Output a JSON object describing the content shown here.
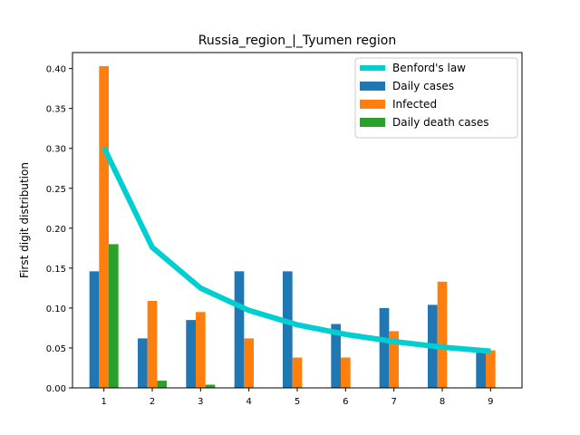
{
  "chart_data": {
    "type": "bar",
    "title": "Russia_region_|_Tyumen region",
    "xlabel": "",
    "ylabel": "First digit distribution",
    "categories": [
      "1",
      "2",
      "3",
      "4",
      "5",
      "6",
      "7",
      "8",
      "9"
    ],
    "ylim": [
      0,
      0.42
    ],
    "yticks": [
      "0.00",
      "0.05",
      "0.10",
      "0.15",
      "0.20",
      "0.25",
      "0.30",
      "0.35",
      "0.40"
    ],
    "grid": false,
    "legend_position": "top-right",
    "series": [
      {
        "name": "Daily cases",
        "kind": "bar",
        "color": "#1f77b4",
        "values": [
          0.146,
          0.062,
          0.085,
          0.146,
          0.146,
          0.08,
          0.1,
          0.104,
          0.045
        ]
      },
      {
        "name": "Infected",
        "kind": "bar",
        "color": "#ff7f0e",
        "values": [
          0.403,
          0.109,
          0.095,
          0.062,
          0.038,
          0.038,
          0.071,
          0.133,
          0.047
        ]
      },
      {
        "name": "Daily death cases",
        "kind": "bar",
        "color": "#2ca02c",
        "values": [
          0.18,
          0.009,
          0.004,
          0,
          0,
          0,
          0,
          0,
          0
        ]
      },
      {
        "name": "Benford's law",
        "kind": "line",
        "color": "#00ced1",
        "values": [
          0.301,
          0.176,
          0.125,
          0.097,
          0.079,
          0.067,
          0.058,
          0.051,
          0.046
        ]
      }
    ],
    "legend_order": [
      "Benford's law",
      "Daily cases",
      "Infected",
      "Daily death cases"
    ]
  }
}
